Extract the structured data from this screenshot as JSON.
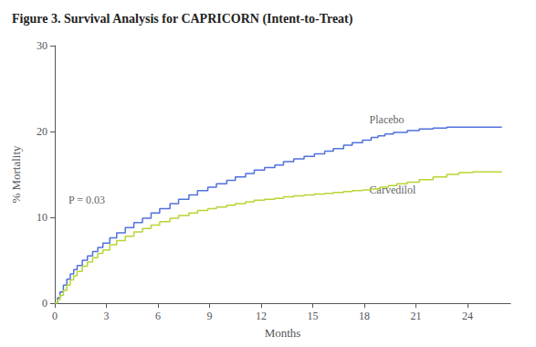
{
  "chart_data": {
    "type": "line",
    "line_style": "step",
    "title": "Figure 3. Survival Analysis for CAPRICORN (Intent-to-Treat)",
    "xlabel": "Months",
    "ylabel": "% Mortality",
    "xlim": [
      0,
      26.5
    ],
    "ylim": [
      0,
      30
    ],
    "xticks": [
      0,
      3,
      6,
      9,
      12,
      15,
      18,
      21,
      24
    ],
    "yticks": [
      0,
      10,
      20,
      30
    ],
    "grid": false,
    "annotations": [
      {
        "text": "P = 0.03",
        "x": 0.8,
        "y": 11.2
      }
    ],
    "series": [
      {
        "name": "Placebo",
        "label_at": [
          18.3,
          20.5
        ],
        "x": [
          0,
          0.15,
          0.3,
          0.5,
          0.7,
          0.9,
          1.1,
          1.3,
          1.6,
          1.9,
          2.2,
          2.5,
          2.8,
          3.2,
          3.6,
          4.1,
          4.6,
          5.1,
          5.6,
          6.1,
          6.7,
          7.2,
          7.8,
          8.3,
          8.9,
          9.4,
          10.0,
          10.5,
          11.1,
          11.6,
          12.2,
          12.8,
          13.3,
          13.9,
          14.5,
          15.1,
          15.7,
          16.2,
          16.8,
          17.3,
          17.9,
          18.4,
          18.8,
          19.2,
          19.7,
          20.5,
          21.2,
          22.0,
          22.8,
          23.5,
          24.3,
          26.0
        ],
        "values": [
          0,
          0.6,
          1.3,
          2.1,
          2.8,
          3.4,
          3.9,
          4.4,
          5.0,
          5.5,
          6.0,
          6.5,
          7.0,
          7.6,
          8.2,
          8.8,
          9.4,
          9.9,
          10.5,
          11.0,
          11.6,
          12.1,
          12.6,
          13.1,
          13.5,
          13.9,
          14.3,
          14.7,
          15.1,
          15.5,
          15.8,
          16.1,
          16.5,
          16.8,
          17.1,
          17.4,
          17.7,
          18.0,
          18.4,
          18.7,
          19.0,
          19.3,
          19.5,
          19.7,
          19.9,
          20.1,
          20.3,
          20.4,
          20.5,
          20.5,
          20.5,
          20.5
        ]
      },
      {
        "name": "Carvedilol",
        "label_at": [
          18.3,
          12.3
        ],
        "x": [
          0,
          0.15,
          0.3,
          0.5,
          0.7,
          0.9,
          1.1,
          1.3,
          1.6,
          1.9,
          2.2,
          2.5,
          2.8,
          3.2,
          3.6,
          4.1,
          4.6,
          5.1,
          5.6,
          6.1,
          6.7,
          7.2,
          7.8,
          8.3,
          8.9,
          9.4,
          10.0,
          10.5,
          11.1,
          11.6,
          12.2,
          12.8,
          13.3,
          13.9,
          14.5,
          15.1,
          15.7,
          16.2,
          16.8,
          17.3,
          17.9,
          18.4,
          18.9,
          19.4,
          19.9,
          20.5,
          21.2,
          22.0,
          22.8,
          23.5,
          24.3,
          26.0
        ],
        "values": [
          0,
          0.4,
          0.9,
          1.5,
          2.1,
          2.7,
          3.2,
          3.7,
          4.3,
          4.8,
          5.3,
          5.8,
          6.2,
          6.8,
          7.3,
          7.8,
          8.3,
          8.7,
          9.1,
          9.5,
          9.9,
          10.2,
          10.5,
          10.8,
          11.0,
          11.2,
          11.4,
          11.6,
          11.8,
          12.0,
          12.1,
          12.2,
          12.4,
          12.5,
          12.6,
          12.7,
          12.8,
          12.9,
          13.0,
          13.1,
          13.2,
          13.3,
          13.5,
          13.7,
          13.9,
          14.1,
          14.4,
          14.7,
          15.0,
          15.2,
          15.3,
          15.3
        ]
      }
    ]
  }
}
